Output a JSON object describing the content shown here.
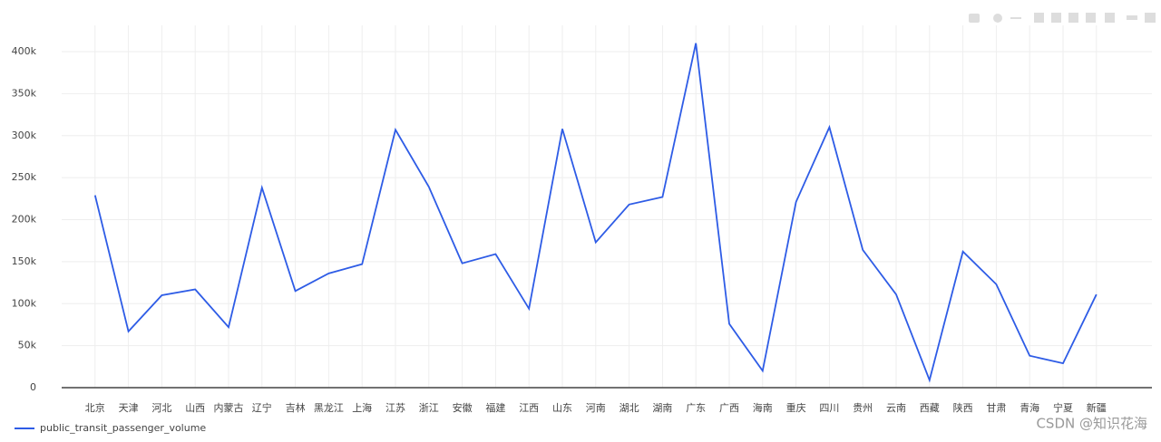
{
  "chart_data": {
    "type": "line",
    "categories": [
      "北京",
      "天津",
      "河北",
      "山西",
      "内蒙古",
      "辽宁",
      "吉林",
      "黑龙江",
      "上海",
      "江苏",
      "浙江",
      "安徽",
      "福建",
      "江西",
      "山东",
      "河南",
      "湖北",
      "湖南",
      "广东",
      "广西",
      "海南",
      "重庆",
      "四川",
      "贵州",
      "云南",
      "西藏",
      "陕西",
      "甘肃",
      "青海",
      "宁夏",
      "新疆"
    ],
    "series": [
      {
        "name": "public_transit_passenger_volume",
        "color": "#2e5ce6",
        "values": [
          229000,
          67000,
          110000,
          117000,
          72000,
          238000,
          115000,
          136000,
          147000,
          307000,
          239000,
          148000,
          159000,
          94000,
          308000,
          173000,
          218000,
          227000,
          410000,
          76000,
          20000,
          221000,
          310000,
          164000,
          111000,
          9000,
          162000,
          123000,
          38000,
          29000,
          111000
        ]
      }
    ],
    "ylim": [
      0,
      400000
    ],
    "yticks": [
      0,
      {
        "value": 50000,
        "label": "50k"
      },
      {
        "value": 100000,
        "label": "100k"
      },
      {
        "value": 150000,
        "label": "150k"
      },
      {
        "value": 200000,
        "label": "200k"
      },
      {
        "value": 250000,
        "label": "250k"
      },
      {
        "value": 300000,
        "label": "300k"
      },
      {
        "value": 350000,
        "label": "350k"
      },
      {
        "value": 400000,
        "label": "400k"
      }
    ],
    "grid": true,
    "legend": "bottom-left",
    "watermark": "CSDN @知识花海"
  }
}
